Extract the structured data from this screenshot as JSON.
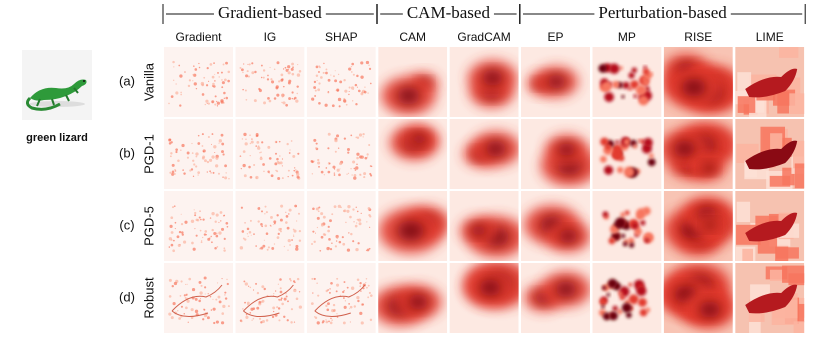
{
  "groups": [
    {
      "label": "Gradient-based"
    },
    {
      "label": "CAM-based"
    },
    {
      "label": "Perturbation-based"
    }
  ],
  "methods": [
    "Gradient",
    "IG",
    "SHAP",
    "CAM",
    "GradCAM",
    "EP",
    "MP",
    "RISE",
    "LIME"
  ],
  "rows": [
    {
      "index": "(a)",
      "name": "Vanilla"
    },
    {
      "index": "(b)",
      "name": "PGD-1"
    },
    {
      "index": "(c)",
      "name": "PGD-5"
    },
    {
      "index": "(d)",
      "name": "Robust"
    }
  ],
  "image": {
    "caption": "green lizard"
  }
}
